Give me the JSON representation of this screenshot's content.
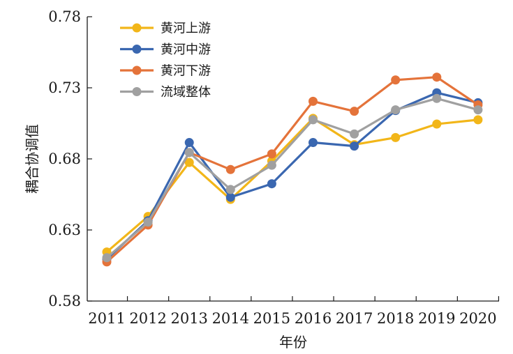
{
  "chart_data": {
    "type": "line",
    "xlabel": "年份",
    "ylabel": "耦合协调值",
    "ylim": [
      0.58,
      0.78
    ],
    "yticks": [
      "0.58",
      "0.63",
      "0.68",
      "0.73",
      "0.78"
    ],
    "yticks_values": [
      0.58,
      0.63,
      0.68,
      0.73,
      0.78
    ],
    "categories": [
      "2011",
      "2012",
      "2013",
      "2014",
      "2015",
      "2016",
      "2017",
      "2018",
      "2019",
      "2020"
    ],
    "grid": false,
    "legend_position": "top-left",
    "series": [
      {
        "name": "黄河上游",
        "color": "#F2B619",
        "values": [
          0.6145,
          0.6395,
          0.6775,
          0.6515,
          0.6785,
          0.7085,
          0.69,
          0.695,
          0.7045,
          0.7075
        ]
      },
      {
        "name": "黄河中游",
        "color": "#3A67B0",
        "values": [
          0.6095,
          0.6365,
          0.6915,
          0.653,
          0.6625,
          0.6915,
          0.689,
          0.714,
          0.7265,
          0.7195
        ]
      },
      {
        "name": "黄河下游",
        "color": "#E4733A",
        "values": [
          0.6075,
          0.6335,
          0.6845,
          0.6725,
          0.6835,
          0.7205,
          0.7135,
          0.7355,
          0.7375,
          0.718
        ]
      },
      {
        "name": "流域整体",
        "color": "#A0A0A0",
        "values": [
          0.6105,
          0.6355,
          0.6845,
          0.6585,
          0.6755,
          0.7075,
          0.6975,
          0.7145,
          0.7225,
          0.7145
        ]
      }
    ]
  }
}
